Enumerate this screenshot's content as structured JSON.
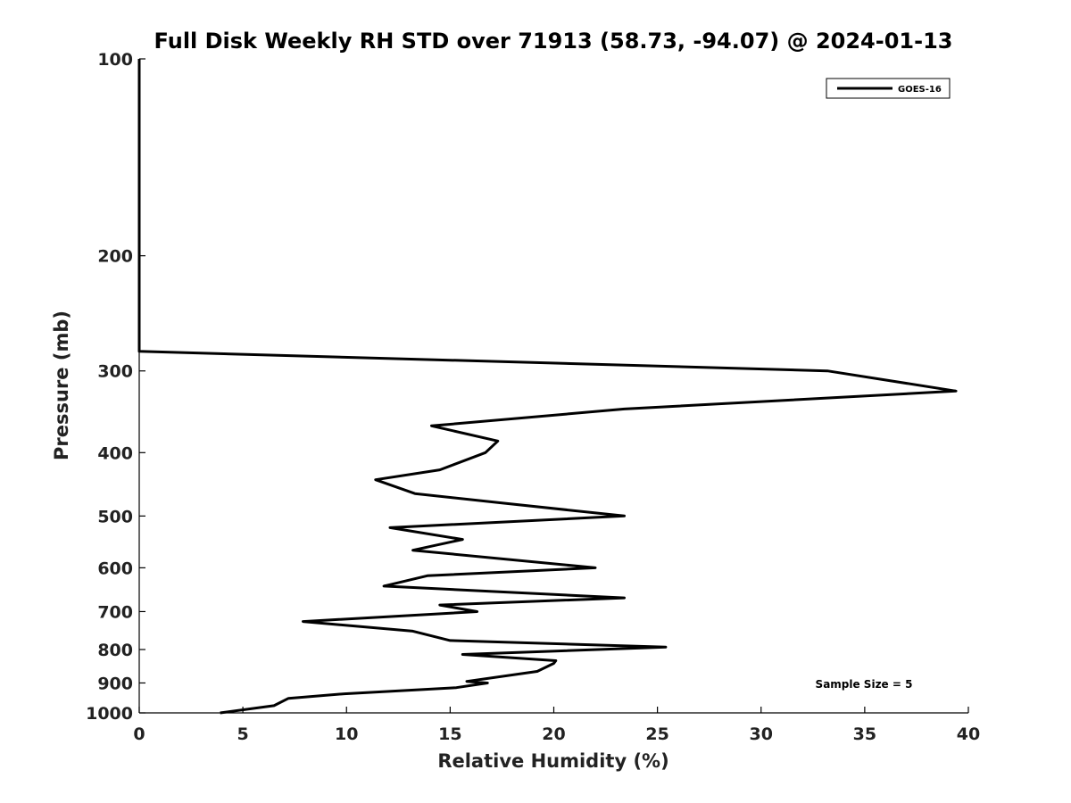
{
  "chart_data": {
    "type": "line",
    "title": "Full Disk Weekly RH STD over 71913 (58.73, -94.07) @ 2024-01-13",
    "xlabel": "Relative Humidity (%)",
    "ylabel": "Pressure (mb)",
    "xlim": [
      0,
      40
    ],
    "ylim": [
      1000,
      100
    ],
    "yscale": "log",
    "y_inverted": true,
    "xticks": [
      0,
      5,
      10,
      15,
      20,
      25,
      30,
      35,
      40
    ],
    "yticks": [
      100,
      200,
      300,
      400,
      500,
      600,
      700,
      800,
      900,
      1000
    ],
    "grid": false,
    "legend_position": "top-right",
    "annotation": "Sample Size = 5",
    "series": [
      {
        "name": "GOES-16",
        "color": "#000000",
        "points": [
          [
            0.0,
            100
          ],
          [
            0.0,
            150
          ],
          [
            0.0,
            200
          ],
          [
            0.0,
            250
          ],
          [
            0.0,
            280
          ],
          [
            33.2,
            300
          ],
          [
            39.4,
            322
          ],
          [
            23.4,
            343
          ],
          [
            14.1,
            364
          ],
          [
            17.3,
            384
          ],
          [
            16.7,
            400
          ],
          [
            14.5,
            425
          ],
          [
            11.4,
            440
          ],
          [
            13.3,
            462
          ],
          [
            17.6,
            478
          ],
          [
            23.4,
            500
          ],
          [
            12.1,
            521
          ],
          [
            15.6,
            543
          ],
          [
            13.2,
            564
          ],
          [
            22.0,
            600
          ],
          [
            13.9,
            617
          ],
          [
            11.8,
            640
          ],
          [
            23.4,
            667
          ],
          [
            14.5,
            684
          ],
          [
            16.3,
            700
          ],
          [
            7.9,
            725
          ],
          [
            13.2,
            750
          ],
          [
            15.0,
            775
          ],
          [
            25.4,
            793
          ],
          [
            15.6,
            814
          ],
          [
            20.1,
            832
          ],
          [
            20.0,
            840
          ],
          [
            19.2,
            864
          ],
          [
            15.8,
            895
          ],
          [
            16.8,
            900
          ],
          [
            15.3,
            915
          ],
          [
            9.9,
            935
          ],
          [
            7.2,
            950
          ],
          [
            6.5,
            975
          ],
          [
            3.9,
            1000
          ]
        ]
      }
    ]
  }
}
